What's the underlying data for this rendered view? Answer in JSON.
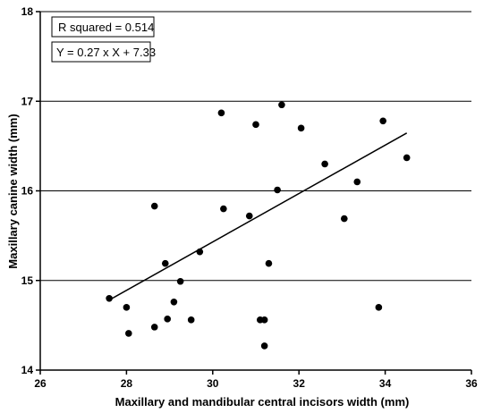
{
  "chart_data": {
    "type": "scatter",
    "title": "",
    "xlabel": "Maxillary and mandibular central incisors width (mm)",
    "ylabel": "Maxillary canine width (mm)",
    "xlim": [
      26,
      36
    ],
    "ylim": [
      14,
      18
    ],
    "xticks": [
      26,
      28,
      30,
      32,
      34,
      36
    ],
    "yticks": [
      14,
      15,
      16,
      17,
      18
    ],
    "grid": "horizontal",
    "annotations": [
      "R squared = 0.514",
      "Y = 0.27 x X + 7.33"
    ],
    "regression": {
      "slope": 0.27,
      "intercept": 7.33,
      "x_range": [
        27.6,
        34.5
      ]
    },
    "points": [
      {
        "x": 27.6,
        "y": 14.8
      },
      {
        "x": 28.0,
        "y": 14.7
      },
      {
        "x": 28.05,
        "y": 14.41
      },
      {
        "x": 28.65,
        "y": 14.48
      },
      {
        "x": 28.65,
        "y": 15.83
      },
      {
        "x": 28.9,
        "y": 15.19
      },
      {
        "x": 28.95,
        "y": 14.57
      },
      {
        "x": 29.1,
        "y": 14.76
      },
      {
        "x": 29.25,
        "y": 14.99
      },
      {
        "x": 29.5,
        "y": 14.56
      },
      {
        "x": 29.7,
        "y": 15.32
      },
      {
        "x": 30.2,
        "y": 16.87
      },
      {
        "x": 30.25,
        "y": 15.8
      },
      {
        "x": 30.85,
        "y": 15.72
      },
      {
        "x": 31.0,
        "y": 16.74
      },
      {
        "x": 31.1,
        "y": 14.56
      },
      {
        "x": 31.2,
        "y": 14.56
      },
      {
        "x": 31.2,
        "y": 14.27
      },
      {
        "x": 31.3,
        "y": 15.19
      },
      {
        "x": 31.5,
        "y": 16.01
      },
      {
        "x": 31.6,
        "y": 16.96
      },
      {
        "x": 32.05,
        "y": 16.7
      },
      {
        "x": 32.6,
        "y": 16.3
      },
      {
        "x": 33.05,
        "y": 15.69
      },
      {
        "x": 33.35,
        "y": 16.1
      },
      {
        "x": 33.85,
        "y": 14.7
      },
      {
        "x": 33.95,
        "y": 16.78
      },
      {
        "x": 34.5,
        "y": 16.37
      }
    ]
  }
}
